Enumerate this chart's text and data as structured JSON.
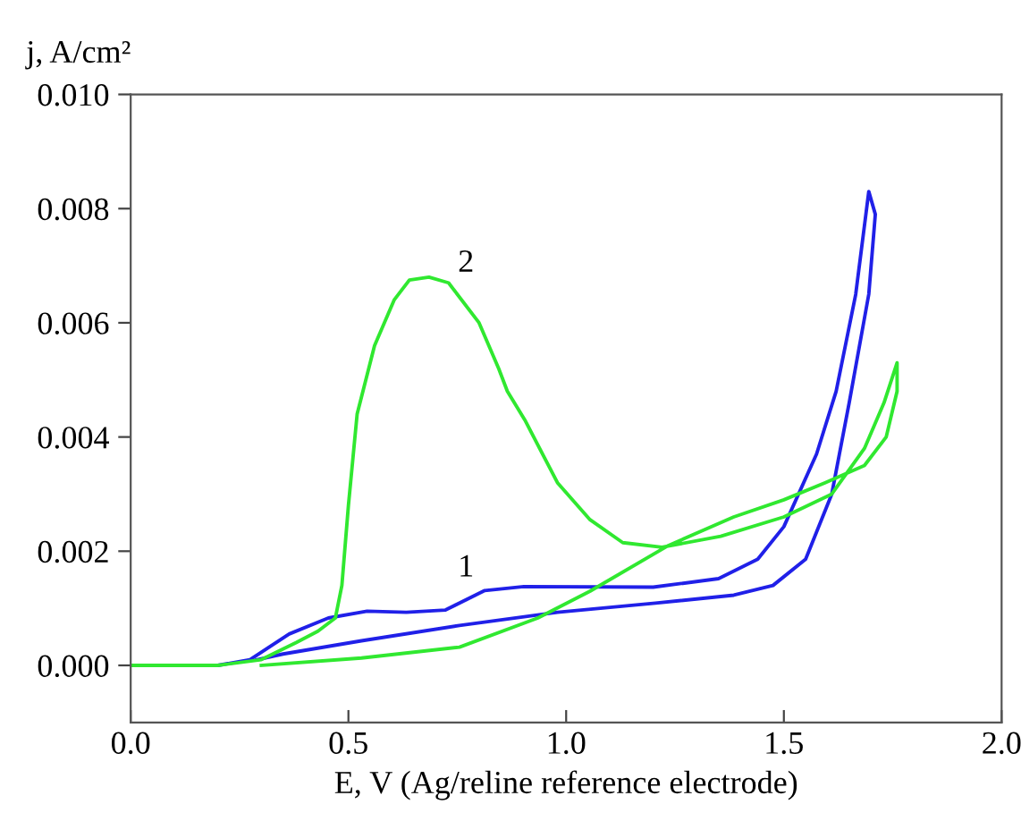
{
  "chart_data": {
    "type": "line",
    "xlabel": "E, V (Ag/reline reference electrode)",
    "ylabel": "j, A/cm²",
    "xlim": [
      0,
      2.0
    ],
    "ylim": [
      -0.001,
      0.01
    ],
    "xticks": [
      {
        "value": 0,
        "label": "0.0"
      },
      {
        "value": 0.5,
        "label": "0.5"
      },
      {
        "value": 1,
        "label": "1.0"
      },
      {
        "value": 1.5,
        "label": "1.5"
      },
      {
        "value": 2,
        "label": "2.0"
      }
    ],
    "yticks": [
      {
        "value": 0,
        "label": "0.000"
      },
      {
        "value": 0.002,
        "label": "0.002"
      },
      {
        "value": 0.004,
        "label": "0.004"
      },
      {
        "value": 0.006,
        "label": "0.006"
      },
      {
        "value": 0.008,
        "label": "0.008"
      },
      {
        "value": 0.01,
        "label": "0.010"
      }
    ],
    "marker": "none",
    "line_style": "solid",
    "series": [
      {
        "name": "1",
        "color": "#2020e8",
        "x": [
          0,
          0.2,
          0.274,
          0.364,
          0.454,
          0.543,
          0.633,
          0.723,
          0.813,
          0.903,
          1.2,
          1.35,
          1.44,
          1.5,
          1.575,
          1.62,
          1.665,
          1.695,
          1.71,
          1.695,
          1.65,
          1.61,
          1.55,
          1.475,
          1.385,
          1.205,
          0.98,
          0.755,
          0.53,
          0.35,
          0.29
        ],
        "values": [
          0,
          0,
          0.0001,
          0.00055,
          0.00083,
          0.00095,
          0.00093,
          0.00097,
          0.00131,
          0.00138,
          0.00137,
          0.00152,
          0.00186,
          0.00243,
          0.0037,
          0.0048,
          0.0065,
          0.0083,
          0.0079,
          0.0065,
          0.0046,
          0.003,
          0.00186,
          0.0014,
          0.00123,
          0.00109,
          0.00093,
          0.0007,
          0.00043,
          0.0002,
          0.0001
        ]
      },
      {
        "name": "2",
        "color": "#30e830",
        "x": [
          0,
          0.2,
          0.3,
          0.38,
          0.43,
          0.47,
          0.485,
          0.5,
          0.52,
          0.56,
          0.605,
          0.64,
          0.685,
          0.73,
          0.8,
          0.845,
          0.865,
          0.905,
          0.98,
          1.055,
          1.13,
          1.22,
          1.355,
          1.5,
          1.61,
          1.685,
          1.73,
          1.76,
          1.76,
          1.735,
          1.685,
          1.595,
          1.5,
          1.385,
          1.235,
          1.055,
          0.935,
          0.755,
          0.53,
          0.3
        ],
        "values": [
          0,
          0,
          0.0001,
          0.0004,
          0.0006,
          0.00083,
          0.0014,
          0.0028,
          0.0044,
          0.0056,
          0.0064,
          0.00675,
          0.0068,
          0.0067,
          0.006,
          0.0052,
          0.0048,
          0.0043,
          0.0032,
          0.00255,
          0.00215,
          0.00207,
          0.00226,
          0.0026,
          0.003,
          0.0038,
          0.0046,
          0.0053,
          0.0048,
          0.004,
          0.0035,
          0.0032,
          0.0029,
          0.0026,
          0.0021,
          0.0013,
          0.00083,
          0.00032,
          0.00013,
          0
        ]
      }
    ]
  }
}
